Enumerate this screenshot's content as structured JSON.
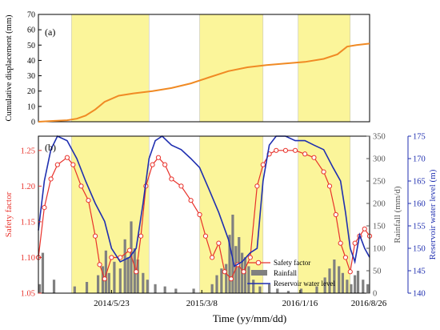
{
  "chart_data": [
    {
      "panel_label": "(a)",
      "type": "line",
      "ylabel": "Cumulative displacement (mm)",
      "ylim": [
        0,
        70
      ],
      "yticks": [
        "0",
        "10",
        "20",
        "30",
        "40",
        "50",
        "60",
        "70"
      ],
      "color": "#f08a24",
      "x": [
        "2013/10/01",
        "2013/11/15",
        "2014/01/01",
        "2014/02/01",
        "2014/03/01",
        "2014/04/01",
        "2014/05/01",
        "2014/06/15",
        "2014/08/01",
        "2014/10/01",
        "2014/12/01",
        "2015/02/01",
        "2015/04/01",
        "2015/06/01",
        "2015/08/01",
        "2015/10/01",
        "2015/12/01",
        "2016/02/01",
        "2016/04/01",
        "2016/05/15",
        "2016/06/15",
        "2016/07/15",
        "2016/08/26"
      ],
      "y": [
        0,
        0.5,
        1,
        2,
        4,
        8,
        13,
        17,
        18.5,
        20,
        22,
        25,
        29,
        33,
        35.5,
        37,
        38,
        39,
        41,
        44,
        49,
        50,
        51
      ]
    },
    {
      "panel_label": "(b)",
      "type": "line",
      "xlabel": "Time (yy/mm/dd)",
      "xticks": [
        "2014/5/23",
        "2015/3/8",
        "2016/1/16",
        "2016/8/26"
      ],
      "y_left": {
        "label": "Safety factor",
        "ylim": [
          1.05,
          1.27
        ],
        "ticks": [
          "1.05",
          "1.10",
          "1.15",
          "1.20",
          "1.25"
        ],
        "color": "#e8312a"
      },
      "y_rain": {
        "label": "Rainfall (mm/d)",
        "ylim": [
          0,
          350
        ],
        "ticks": [
          "0",
          "50",
          "100",
          "150",
          "200",
          "250",
          "300",
          "350"
        ],
        "color": "#555555"
      },
      "y_right": {
        "label": "Reservoir water level (m)",
        "ylim": [
          140,
          175
        ],
        "ticks": [
          "140",
          "145",
          "150",
          "155",
          "160",
          "165",
          "170",
          "175"
        ],
        "color": "#1f2fb0"
      },
      "highlight_periods": [
        [
          "2014/01/15",
          "2014/09/20"
        ],
        [
          "2015/03/01",
          "2015/09/20"
        ],
        [
          "2016/01/10",
          "2016/06/25"
        ]
      ],
      "legend": [
        "Safety factor",
        "Rainfall",
        "Reservoir water level"
      ],
      "series": [
        {
          "name": "Safety factor",
          "color": "#e8312a",
          "x": [
            "2013/10/01",
            "2013/10/20",
            "2013/11/10",
            "2013/12/01",
            "2014/01/01",
            "2014/01/20",
            "2014/02/15",
            "2014/03/10",
            "2014/04/01",
            "2014/04/15",
            "2014/05/01",
            "2014/05/23",
            "2014/06/20",
            "2014/07/20",
            "2014/08/10",
            "2014/08/25",
            "2014/09/10",
            "2014/10/01",
            "2014/10/20",
            "2014/11/10",
            "2014/12/01",
            "2015/01/01",
            "2015/02/01",
            "2015/03/01",
            "2015/03/20",
            "2015/04/10",
            "2015/05/01",
            "2015/05/20",
            "2015/06/10",
            "2015/07/01",
            "2015/07/20",
            "2015/08/10",
            "2015/09/01",
            "2015/09/20",
            "2015/10/10",
            "2015/11/01",
            "2015/12/01",
            "2016/01/01",
            "2016/02/01",
            "2016/03/01",
            "2016/04/01",
            "2016/04/20",
            "2016/05/10",
            "2016/05/25",
            "2016/06/10",
            "2016/06/25",
            "2016/07/10",
            "2016/07/25",
            "2016/08/10",
            "2016/08/26"
          ],
          "values": [
            1.1,
            1.17,
            1.21,
            1.23,
            1.24,
            1.23,
            1.2,
            1.18,
            1.13,
            1.09,
            1.07,
            1.1,
            1.1,
            1.11,
            1.08,
            1.13,
            1.2,
            1.23,
            1.24,
            1.23,
            1.21,
            1.2,
            1.18,
            1.16,
            1.13,
            1.1,
            1.12,
            1.08,
            1.07,
            1.09,
            1.08,
            1.1,
            1.2,
            1.23,
            1.245,
            1.25,
            1.25,
            1.25,
            1.245,
            1.24,
            1.22,
            1.2,
            1.16,
            1.12,
            1.1,
            1.08,
            1.12,
            1.13,
            1.14,
            1.13
          ]
        },
        {
          "name": "Reservoir water level",
          "color": "#1f2fb0",
          "x": [
            "2013/10/01",
            "2013/10/20",
            "2013/11/10",
            "2013/12/01",
            "2014/01/01",
            "2014/02/01",
            "2014/03/01",
            "2014/04/01",
            "2014/05/01",
            "2014/05/23",
            "2014/06/20",
            "2014/07/20",
            "2014/08/10",
            "2014/09/01",
            "2014/09/20",
            "2014/10/10",
            "2014/11/01",
            "2014/12/01",
            "2015/01/01",
            "2015/02/01",
            "2015/03/01",
            "2015/04/01",
            "2015/05/01",
            "2015/06/01",
            "2015/06/20",
            "2015/07/15",
            "2015/08/10",
            "2015/09/01",
            "2015/09/20",
            "2015/10/10",
            "2015/11/01",
            "2015/12/01",
            "2016/01/01",
            "2016/02/01",
            "2016/03/01",
            "2016/04/01",
            "2016/05/01",
            "2016/05/25",
            "2016/06/10",
            "2016/06/25",
            "2016/07/10",
            "2016/07/25",
            "2016/08/10",
            "2016/08/26"
          ],
          "values": [
            154,
            165,
            172,
            175,
            174,
            170,
            165,
            160,
            156,
            150,
            147,
            148,
            150,
            160,
            170,
            174,
            175,
            173,
            172,
            170,
            168,
            163,
            158,
            152,
            146,
            147,
            149,
            150,
            165,
            173,
            175,
            175,
            174,
            174,
            173,
            172,
            168,
            165,
            158,
            150,
            147,
            153,
            150,
            148
          ]
        },
        {
          "name": "Rainfall",
          "type": "bar",
          "color": "#808080",
          "x": [
            "2013/10/05",
            "2013/10/15",
            "2013/11/20",
            "2014/01/25",
            "2014/03/05",
            "2014/04/10",
            "2014/04/25",
            "2014/05/05",
            "2014/05/15",
            "2014/06/01",
            "2014/06/20",
            "2014/07/05",
            "2014/07/15",
            "2014/07/25",
            "2014/08/05",
            "2014/08/15",
            "2014/09/01",
            "2014/09/15",
            "2014/10/10",
            "2014/11/10",
            "2014/12/15",
            "2015/02/10",
            "2015/04/10",
            "2015/04/25",
            "2015/05/10",
            "2015/05/25",
            "2015/06/05",
            "2015/06/15",
            "2015/06/25",
            "2015/07/05",
            "2015/07/15",
            "2015/07/25",
            "2015/08/05",
            "2015/08/20",
            "2015/09/10",
            "2015/10/10",
            "2015/11/05",
            "2015/12/10",
            "2016/01/20",
            "2016/03/10",
            "2016/04/05",
            "2016/04/20",
            "2016/05/05",
            "2016/05/20",
            "2016/06/01",
            "2016/06/15",
            "2016/06/28",
            "2016/07/10",
            "2016/07/20",
            "2016/08/05",
            "2016/08/20"
          ],
          "values": [
            20,
            90,
            30,
            15,
            25,
            40,
            60,
            95,
            45,
            70,
            55,
            120,
            80,
            160,
            100,
            75,
            45,
            30,
            20,
            15,
            10,
            10,
            20,
            40,
            55,
            65,
            130,
            175,
            105,
            125,
            90,
            80,
            60,
            30,
            15,
            20,
            10,
            5,
            10,
            15,
            35,
            55,
            75,
            60,
            45,
            30,
            20,
            40,
            50,
            30,
            20
          ]
        }
      ]
    }
  ]
}
